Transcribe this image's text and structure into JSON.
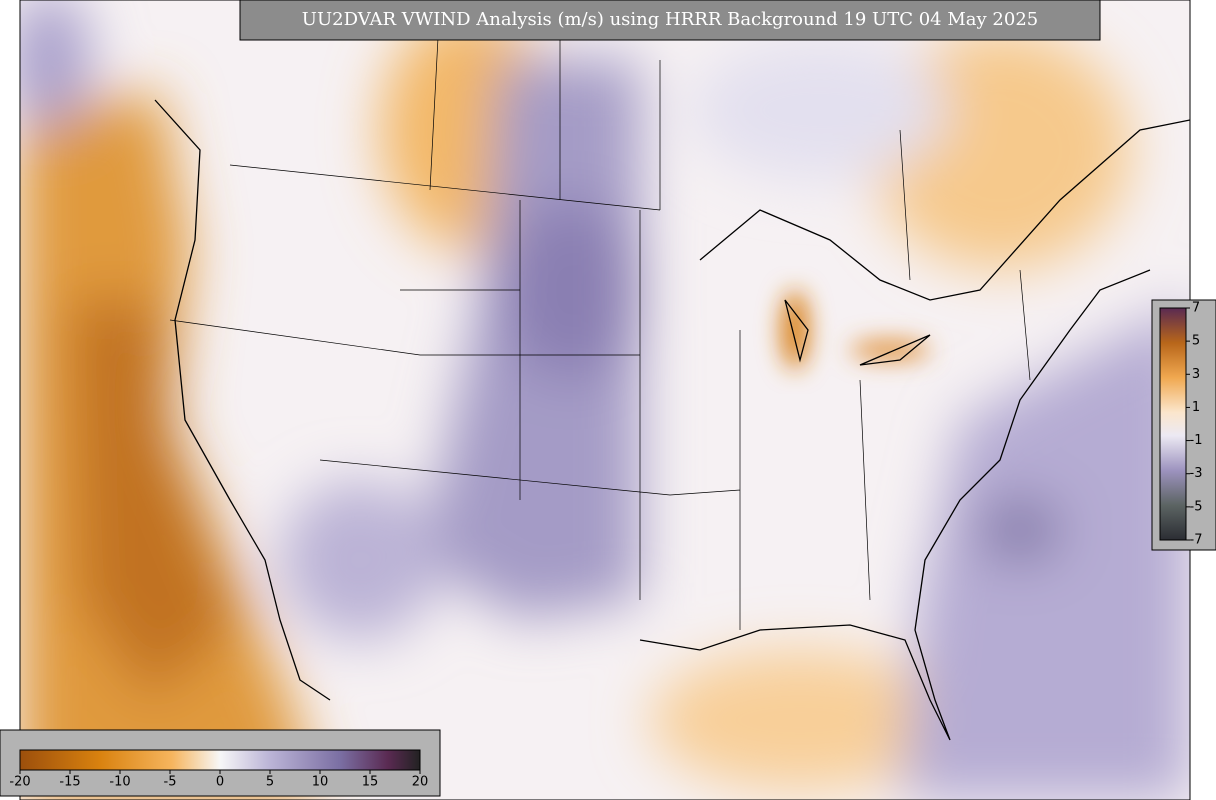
{
  "title": "UU2DVAR VWIND Analysis (m/s) using HRRR Background 19 UTC 04 May 2025",
  "colorbar_main": {
    "ticks": [
      -20,
      -15,
      -10,
      -5,
      0,
      5,
      10,
      15,
      20
    ]
  },
  "colorbar_inset": {
    "ticks": [
      7,
      5,
      3,
      1,
      -1,
      -3,
      -5,
      -7
    ]
  }
}
